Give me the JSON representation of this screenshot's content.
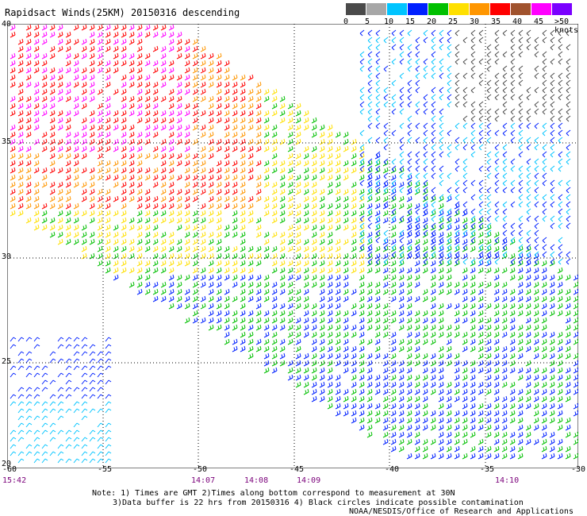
{
  "title": "Rapidsact Winds(25KM) 20150316 descending",
  "legend": {
    "labels": [
      "0",
      "5",
      "10",
      "15",
      "20",
      "25",
      "30",
      "35",
      "40",
      "45",
      ">50 knots"
    ],
    "colors": [
      "#4a4a4a",
      "#a7a7a7",
      "#00c4ff",
      "#0020ff",
      "#00c000",
      "#ffe000",
      "#ff9600",
      "#ff0000",
      "#a0522d",
      "#ff00ff",
      "#7a00ff"
    ]
  },
  "axes": {
    "lat_labels": [
      "40",
      "35",
      "30",
      "25",
      "20"
    ],
    "lon_labels": [
      "-60",
      "-55",
      "-50",
      "-45",
      "-40",
      "-35",
      "-30"
    ]
  },
  "times": [
    "15:42",
    "14:07",
    "14:08",
    "14:09",
    "14:10"
  ],
  "notes": {
    "line1": "Note: 1) Times are GMT 2)Times along bottom correspond to measurement at 30N",
    "line2": "3)Data buffer is 22 hrs from 20150316 4) Black circles indicate possible contamination",
    "credit": "NOAA/NESDIS/Office of Research and Applications"
  }
}
